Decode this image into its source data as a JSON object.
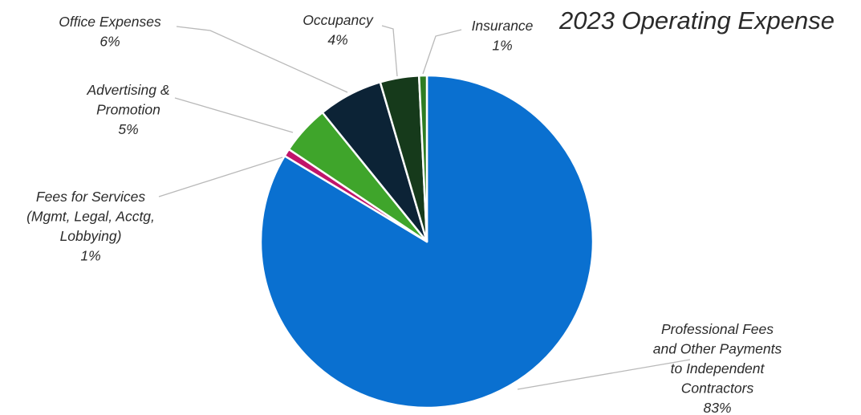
{
  "chart_data": {
    "type": "pie",
    "title": "2023 Operating Expense",
    "start_angle_deg": 0,
    "direction": "clockwise",
    "slices": [
      {
        "label": [
          "Professional Fees",
          "and Other Payments",
          "to Independent",
          "Contractors"
        ],
        "percent_label": "83%",
        "value": 83.0,
        "color": "#0a70d0"
      },
      {
        "label": [
          "Fees for Services",
          "(Mgmt, Legal, Acctg,",
          "Lobbying)"
        ],
        "percent_label": "1%",
        "value": 0.75,
        "color": "#c0146a"
      },
      {
        "label": [
          "Advertising &",
          "Promotion"
        ],
        "percent_label": "5%",
        "value": 4.75,
        "color": "#3fa52b"
      },
      {
        "label": [
          "Office Expenses"
        ],
        "percent_label": "6%",
        "value": 6.25,
        "color": "#0c2336"
      },
      {
        "label": [
          "Occupancy"
        ],
        "percent_label": "4%",
        "value": 3.75,
        "color": "#163a1b"
      },
      {
        "label": [
          "Insurance"
        ],
        "percent_label": "1%",
        "value": 0.75,
        "color": "#2e7d22"
      }
    ]
  }
}
